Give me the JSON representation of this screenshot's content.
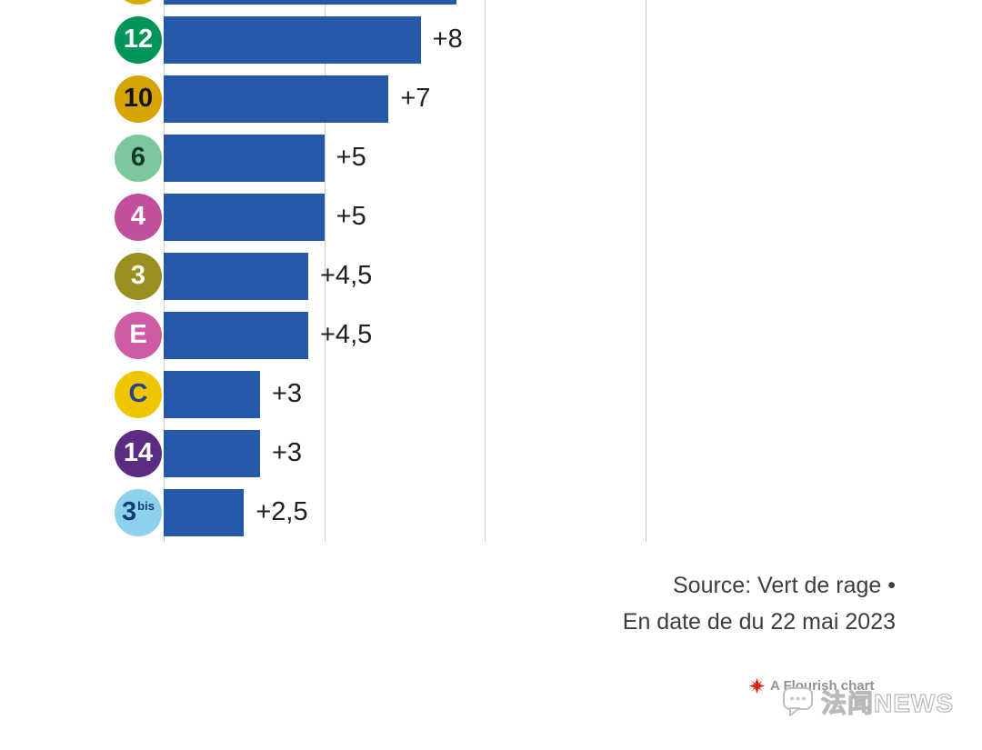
{
  "chart_data": {
    "type": "bar",
    "orientation": "horizontal",
    "title": "",
    "xlabel": "",
    "ylabel": "",
    "x_axis": {
      "min": 0,
      "max": 15,
      "gridlines": [
        0,
        5,
        10,
        15
      ],
      "grid": true
    },
    "bar_color": "#2558A8",
    "rows": [
      {
        "line": "",
        "line_sup": "",
        "value": 9.1,
        "label": "",
        "badge_bg": "#D8AB00",
        "badge_fg": "#000000",
        "clipped": true
      },
      {
        "line": "12",
        "line_sup": "",
        "value": 8,
        "label": "+8",
        "badge_bg": "#009659",
        "badge_fg": "#ffffff",
        "clipped": false
      },
      {
        "line": "10",
        "line_sup": "",
        "value": 7,
        "label": "+7",
        "badge_bg": "#D7A300",
        "badge_fg": "#111111",
        "clipped": false
      },
      {
        "line": "6",
        "line_sup": "",
        "value": 5,
        "label": "+5",
        "badge_bg": "#7CC79B",
        "badge_fg": "#113A26",
        "clipped": false
      },
      {
        "line": "4",
        "line_sup": "",
        "value": 5,
        "label": "+5",
        "badge_bg": "#C1519F",
        "badge_fg": "#ffffff",
        "clipped": false
      },
      {
        "line": "3",
        "line_sup": "",
        "value": 4.5,
        "label": "+4,5",
        "badge_bg": "#9B8F1F",
        "badge_fg": "#ffffff",
        "clipped": false
      },
      {
        "line": "E",
        "line_sup": "",
        "value": 4.5,
        "label": "+4,5",
        "badge_bg": "#CE5BA4",
        "badge_fg": "#ffffff",
        "clipped": false
      },
      {
        "line": "C",
        "line_sup": "",
        "value": 3,
        "label": "+3",
        "badge_bg": "#EFC500",
        "badge_fg": "#28458E",
        "clipped": false
      },
      {
        "line": "14",
        "line_sup": "",
        "value": 3,
        "label": "+3",
        "badge_bg": "#5B2C82",
        "badge_fg": "#ffffff",
        "clipped": false
      },
      {
        "line": "3",
        "line_sup": "bis",
        "value": 2.5,
        "label": "+2,5",
        "badge_bg": "#8CD2EC",
        "badge_fg": "#123B74",
        "clipped": false
      }
    ]
  },
  "source": {
    "line1": "Source: Vert de rage •",
    "line2": "En date de du 22 mai 2023"
  },
  "attribution": {
    "flourish_label": "A Flourish chart",
    "flourish_icon_color": "#DE2118"
  },
  "watermark": {
    "text": "法闻NEWS"
  },
  "colors": {
    "bar": "#2558A8",
    "gridline": "#cfcfcf",
    "label": "#202020",
    "source_text": "#3d3d3d"
  }
}
